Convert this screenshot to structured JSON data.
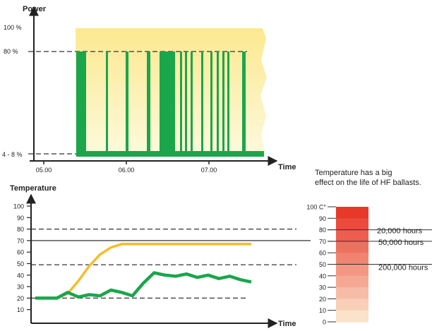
{
  "chart_data": [
    {
      "type": "area",
      "ylabel": "Power",
      "xlabel": "Time",
      "x_ticks": [
        "05.00",
        "06.00",
        "07.00"
      ],
      "y_ticks": [
        "4 - 8 %",
        "80 %",
        "100 %"
      ],
      "reference_line": 80,
      "colors": {
        "band": "#fbe98f",
        "band_light": "#fdf9dc",
        "power": "#1aa64b",
        "dash": "#333333"
      },
      "series": [
        {
          "values": [
            {
              "x": "05.40",
              "y": "80 %"
            },
            {
              "x": "06.05",
              "y": "80 %"
            },
            {
              "x": "06.30",
              "y": "80 %"
            },
            {
              "x": "06.35",
              "y": "80 %"
            },
            {
              "x": "06.45",
              "y": "80 %"
            },
            {
              "x": "07.10",
              "y": "80 %"
            },
            {
              "x": "07.30",
              "y": "80 %"
            },
            {
              "x": "07.40",
              "y": "4 - 8 %"
            }
          ]
        }
      ]
    },
    {
      "type": "line",
      "ylabel": "Temperature",
      "xlabel": "Time",
      "y_ticks": [
        10,
        20,
        30,
        40,
        50,
        60,
        70,
        80,
        90,
        100
      ],
      "ylim": [
        0,
        100
      ],
      "reference_lines": [
        {
          "y": 80,
          "style": "dashed"
        },
        {
          "y": 70,
          "style": "solid"
        },
        {
          "y": 49,
          "style": "dashed"
        },
        {
          "y": 20,
          "style": "dashed"
        }
      ],
      "series": [
        {
          "color": "#f5bd2b",
          "values": [
            20,
            20,
            20,
            24,
            35,
            48,
            58,
            64,
            67,
            67,
            67,
            67,
            67,
            67,
            67,
            67,
            67,
            67,
            67,
            67,
            67
          ]
        },
        {
          "color": "#1aa64b",
          "values": [
            20,
            20,
            20,
            25,
            21,
            23,
            22,
            27,
            25,
            22,
            33,
            42,
            40,
            39,
            41,
            38,
            40,
            37,
            39,
            36,
            34
          ]
        }
      ],
      "x_points": 21
    },
    {
      "type": "bar",
      "title": "Temperature has a big effect on the life of HF ballasts.",
      "title_lines": [
        "Temperature has a big",
        "effect on the life of HF ballasts."
      ],
      "y_ticks": [
        "100 C°",
        90,
        80,
        70,
        60,
        50,
        40,
        30,
        20,
        10,
        0
      ],
      "ylim": [
        0,
        100
      ],
      "gradient_top_color": "#e8382a",
      "gradient_bottom_color": "#fdf5dc",
      "annotations": [
        {
          "y": 80,
          "label": "20,000 hours"
        },
        {
          "y": 70,
          "label": "50,000 hours"
        },
        {
          "y": 50,
          "label": "200,000 hours"
        }
      ]
    }
  ]
}
